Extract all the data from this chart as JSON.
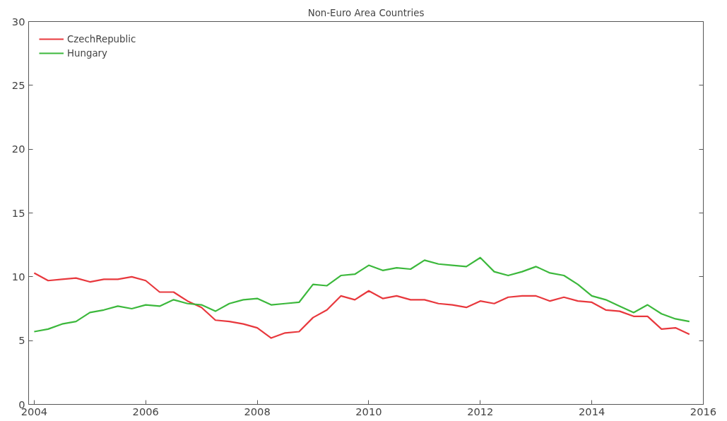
{
  "chart_data": {
    "type": "line",
    "title": "Non-Euro Area Countries",
    "x": [
      2004,
      2004.25,
      2004.5,
      2004.75,
      2005,
      2005.25,
      2005.5,
      2005.75,
      2006,
      2006.25,
      2006.5,
      2006.75,
      2007,
      2007.25,
      2007.5,
      2007.75,
      2008,
      2008.25,
      2008.5,
      2008.75,
      2009,
      2009.25,
      2009.5,
      2009.75,
      2010,
      2010.25,
      2010.5,
      2010.75,
      2011,
      2011.25,
      2011.5,
      2011.75,
      2012,
      2012.25,
      2012.5,
      2012.75,
      2013,
      2013.25,
      2013.5,
      2013.75,
      2014,
      2014.25,
      2014.5,
      2014.75,
      2015,
      2015.25,
      2015.5,
      2015.75
    ],
    "series": [
      {
        "name": "CzechRepublic",
        "color": "#e8383d",
        "values": [
          10.3,
          9.7,
          9.8,
          9.9,
          9.6,
          9.8,
          9.8,
          10.0,
          9.7,
          8.8,
          8.8,
          8.1,
          7.6,
          6.6,
          6.5,
          6.3,
          6.0,
          5.2,
          5.6,
          5.7,
          6.8,
          7.4,
          8.5,
          8.2,
          8.9,
          8.3,
          8.5,
          8.2,
          8.2,
          7.9,
          7.8,
          7.6,
          8.1,
          7.9,
          8.4,
          8.5,
          8.5,
          8.1,
          8.4,
          8.1,
          8.0,
          7.4,
          7.3,
          6.9,
          6.9,
          5.9,
          6.0,
          5.5
        ]
      },
      {
        "name": "Hungary",
        "color": "#3cb83c",
        "values": [
          5.7,
          5.9,
          6.3,
          6.5,
          7.2,
          7.4,
          7.7,
          7.5,
          7.8,
          7.7,
          8.2,
          7.9,
          7.8,
          7.3,
          7.9,
          8.2,
          8.3,
          7.8,
          7.9,
          8.0,
          9.4,
          9.3,
          10.1,
          10.2,
          10.9,
          10.5,
          10.7,
          10.6,
          11.3,
          11.0,
          10.9,
          10.8,
          11.5,
          10.4,
          10.1,
          10.4,
          10.8,
          10.3,
          10.1,
          9.4,
          8.5,
          8.2,
          7.7,
          7.2,
          7.8,
          7.1,
          6.7,
          6.5
        ]
      }
    ],
    "xlim": [
      2003.9,
      2016
    ],
    "xticks": [
      2004,
      2006,
      2008,
      2010,
      2012,
      2014,
      2016
    ],
    "ylim": [
      0,
      30
    ],
    "yticks": [
      0,
      5,
      10,
      15,
      20,
      25,
      30
    ],
    "grid": false,
    "legend": "top left",
    "line_style": "solid",
    "marker": "none"
  }
}
